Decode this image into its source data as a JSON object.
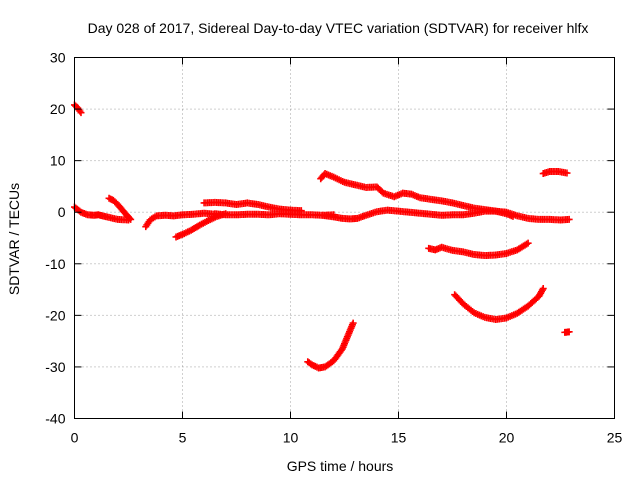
{
  "chart_data": {
    "type": "scatter",
    "title": "Day 028 of 2017, Sidereal Day-to-day VTEC variation (SDTVAR) for receiver hlfx",
    "xlabel": "GPS time / hours",
    "ylabel": "SDTVAR / TECUs",
    "xlim": [
      0,
      25
    ],
    "ylim": [
      -40,
      30
    ],
    "xticks": [
      0,
      5,
      10,
      15,
      20,
      25
    ],
    "yticks": [
      -40,
      -30,
      -20,
      -10,
      0,
      10,
      20,
      30
    ],
    "xtick_labels": [
      "0",
      "5",
      "10",
      "15",
      "20",
      "25"
    ],
    "ytick_labels": [
      "-40",
      "-30",
      "-20",
      "-10",
      "0",
      "10",
      "20",
      "30"
    ],
    "grid": true,
    "marker": "plus",
    "series": [
      {
        "color": "#ff0000",
        "tracks": [
          [
            [
              0.0,
              20.8
            ],
            [
              0.15,
              20.2
            ],
            [
              0.3,
              19.3
            ]
          ],
          [
            [
              0.0,
              1.0
            ],
            [
              0.3,
              0.0
            ],
            [
              0.6,
              -0.5
            ],
            [
              0.9,
              -0.6
            ],
            [
              1.1,
              -0.5
            ],
            [
              1.3,
              -0.7
            ],
            [
              1.6,
              -1.0
            ],
            [
              2.0,
              -1.4
            ],
            [
              2.5,
              -1.5
            ]
          ],
          [
            [
              1.6,
              2.7
            ],
            [
              1.8,
              2.3
            ],
            [
              2.0,
              1.5
            ],
            [
              2.2,
              0.5
            ],
            [
              2.4,
              -0.5
            ],
            [
              2.6,
              -1.4
            ]
          ],
          [
            [
              3.3,
              -2.8
            ],
            [
              3.5,
              -1.5
            ],
            [
              3.8,
              -0.7
            ],
            [
              4.2,
              -0.6
            ],
            [
              4.6,
              -0.7
            ],
            [
              5.0,
              -0.5
            ],
            [
              5.5,
              -0.4
            ],
            [
              6.0,
              -0.2
            ],
            [
              6.5,
              -0.4
            ]
          ],
          [
            [
              4.7,
              -4.8
            ],
            [
              5.0,
              -4.3
            ],
            [
              5.4,
              -3.5
            ],
            [
              5.8,
              -2.5
            ],
            [
              6.2,
              -1.6
            ],
            [
              6.6,
              -0.8
            ],
            [
              7.0,
              -0.3
            ]
          ],
          [
            [
              6.0,
              1.8
            ],
            [
              6.5,
              1.9
            ],
            [
              7.0,
              1.8
            ],
            [
              7.5,
              1.5
            ],
            [
              8.0,
              1.8
            ],
            [
              8.5,
              1.5
            ],
            [
              9.0,
              1.0
            ],
            [
              9.5,
              0.6
            ],
            [
              10.0,
              0.4
            ],
            [
              10.5,
              0.3
            ]
          ],
          [
            [
              6.5,
              -0.3
            ],
            [
              7.0,
              -0.5
            ],
            [
              7.5,
              -0.5
            ],
            [
              8.0,
              -0.4
            ],
            [
              8.5,
              -0.4
            ],
            [
              9.0,
              -0.5
            ],
            [
              9.5,
              -0.3
            ],
            [
              10.0,
              -0.4
            ],
            [
              10.5,
              -0.5
            ],
            [
              11.0,
              -0.5
            ],
            [
              11.5,
              -0.6
            ],
            [
              12.0,
              -0.5
            ]
          ],
          [
            [
              11.5,
              -0.6
            ],
            [
              12.0,
              -0.9
            ],
            [
              12.4,
              -1.2
            ],
            [
              12.8,
              -1.3
            ],
            [
              13.1,
              -1.2
            ],
            [
              13.5,
              -0.6
            ],
            [
              14.0,
              0.1
            ],
            [
              14.5,
              0.4
            ],
            [
              15.0,
              0.2
            ],
            [
              15.5,
              0.0
            ],
            [
              16.0,
              -0.2
            ],
            [
              16.5,
              -0.4
            ],
            [
              17.0,
              -0.6
            ],
            [
              17.5,
              -0.5
            ],
            [
              18.0,
              -0.5
            ],
            [
              18.5,
              -0.2
            ],
            [
              19.0,
              0.2
            ],
            [
              19.5,
              0.2
            ],
            [
              20.0,
              0.0
            ],
            [
              20.5,
              -0.7
            ],
            [
              21.0,
              -1.2
            ],
            [
              21.5,
              -1.4
            ],
            [
              22.0,
              -1.4
            ],
            [
              22.5,
              -1.5
            ],
            [
              22.9,
              -1.4
            ]
          ],
          [
            [
              11.4,
              6.5
            ],
            [
              11.6,
              7.5
            ],
            [
              12.0,
              6.8
            ],
            [
              12.5,
              5.8
            ],
            [
              13.0,
              5.3
            ],
            [
              13.5,
              4.8
            ],
            [
              14.0,
              4.9
            ],
            [
              14.3,
              3.7
            ],
            [
              14.8,
              3.0
            ],
            [
              15.2,
              3.7
            ],
            [
              15.6,
              3.5
            ],
            [
              16.0,
              2.8
            ],
            [
              16.5,
              2.5
            ],
            [
              17.0,
              2.2
            ],
            [
              17.5,
              1.8
            ],
            [
              18.0,
              1.3
            ],
            [
              18.5,
              0.8
            ],
            [
              19.0,
              0.5
            ],
            [
              19.5,
              0.2
            ],
            [
              20.0,
              -0.3
            ],
            [
              20.3,
              -0.8
            ]
          ],
          [
            [
              16.4,
              -7.0
            ],
            [
              16.7,
              -7.3
            ],
            [
              17.0,
              -6.8
            ],
            [
              17.5,
              -7.4
            ],
            [
              18.0,
              -7.7
            ],
            [
              18.5,
              -8.2
            ],
            [
              19.0,
              -8.4
            ],
            [
              19.5,
              -8.3
            ],
            [
              20.0,
              -8.0
            ],
            [
              20.5,
              -7.3
            ],
            [
              21.0,
              -6.0
            ]
          ],
          [
            [
              17.6,
              -16.0
            ],
            [
              18.0,
              -17.8
            ],
            [
              18.5,
              -19.5
            ],
            [
              19.0,
              -20.4
            ],
            [
              19.5,
              -20.8
            ],
            [
              20.0,
              -20.5
            ],
            [
              20.5,
              -19.6
            ],
            [
              21.0,
              -18.2
            ],
            [
              21.5,
              -16.3
            ],
            [
              21.7,
              -14.8
            ]
          ],
          [
            [
              21.7,
              7.5
            ],
            [
              22.0,
              7.9
            ],
            [
              22.4,
              7.9
            ],
            [
              22.8,
              7.6
            ]
          ],
          [
            [
              10.8,
              -29.0
            ],
            [
              11.0,
              -29.6
            ],
            [
              11.3,
              -30.2
            ],
            [
              11.6,
              -30.0
            ],
            [
              12.0,
              -28.8
            ],
            [
              12.4,
              -26.5
            ],
            [
              12.7,
              -23.5
            ],
            [
              12.9,
              -21.5
            ]
          ],
          [
            [
              22.7,
              -23.3
            ],
            [
              22.9,
              -23.2
            ]
          ]
        ]
      }
    ]
  }
}
